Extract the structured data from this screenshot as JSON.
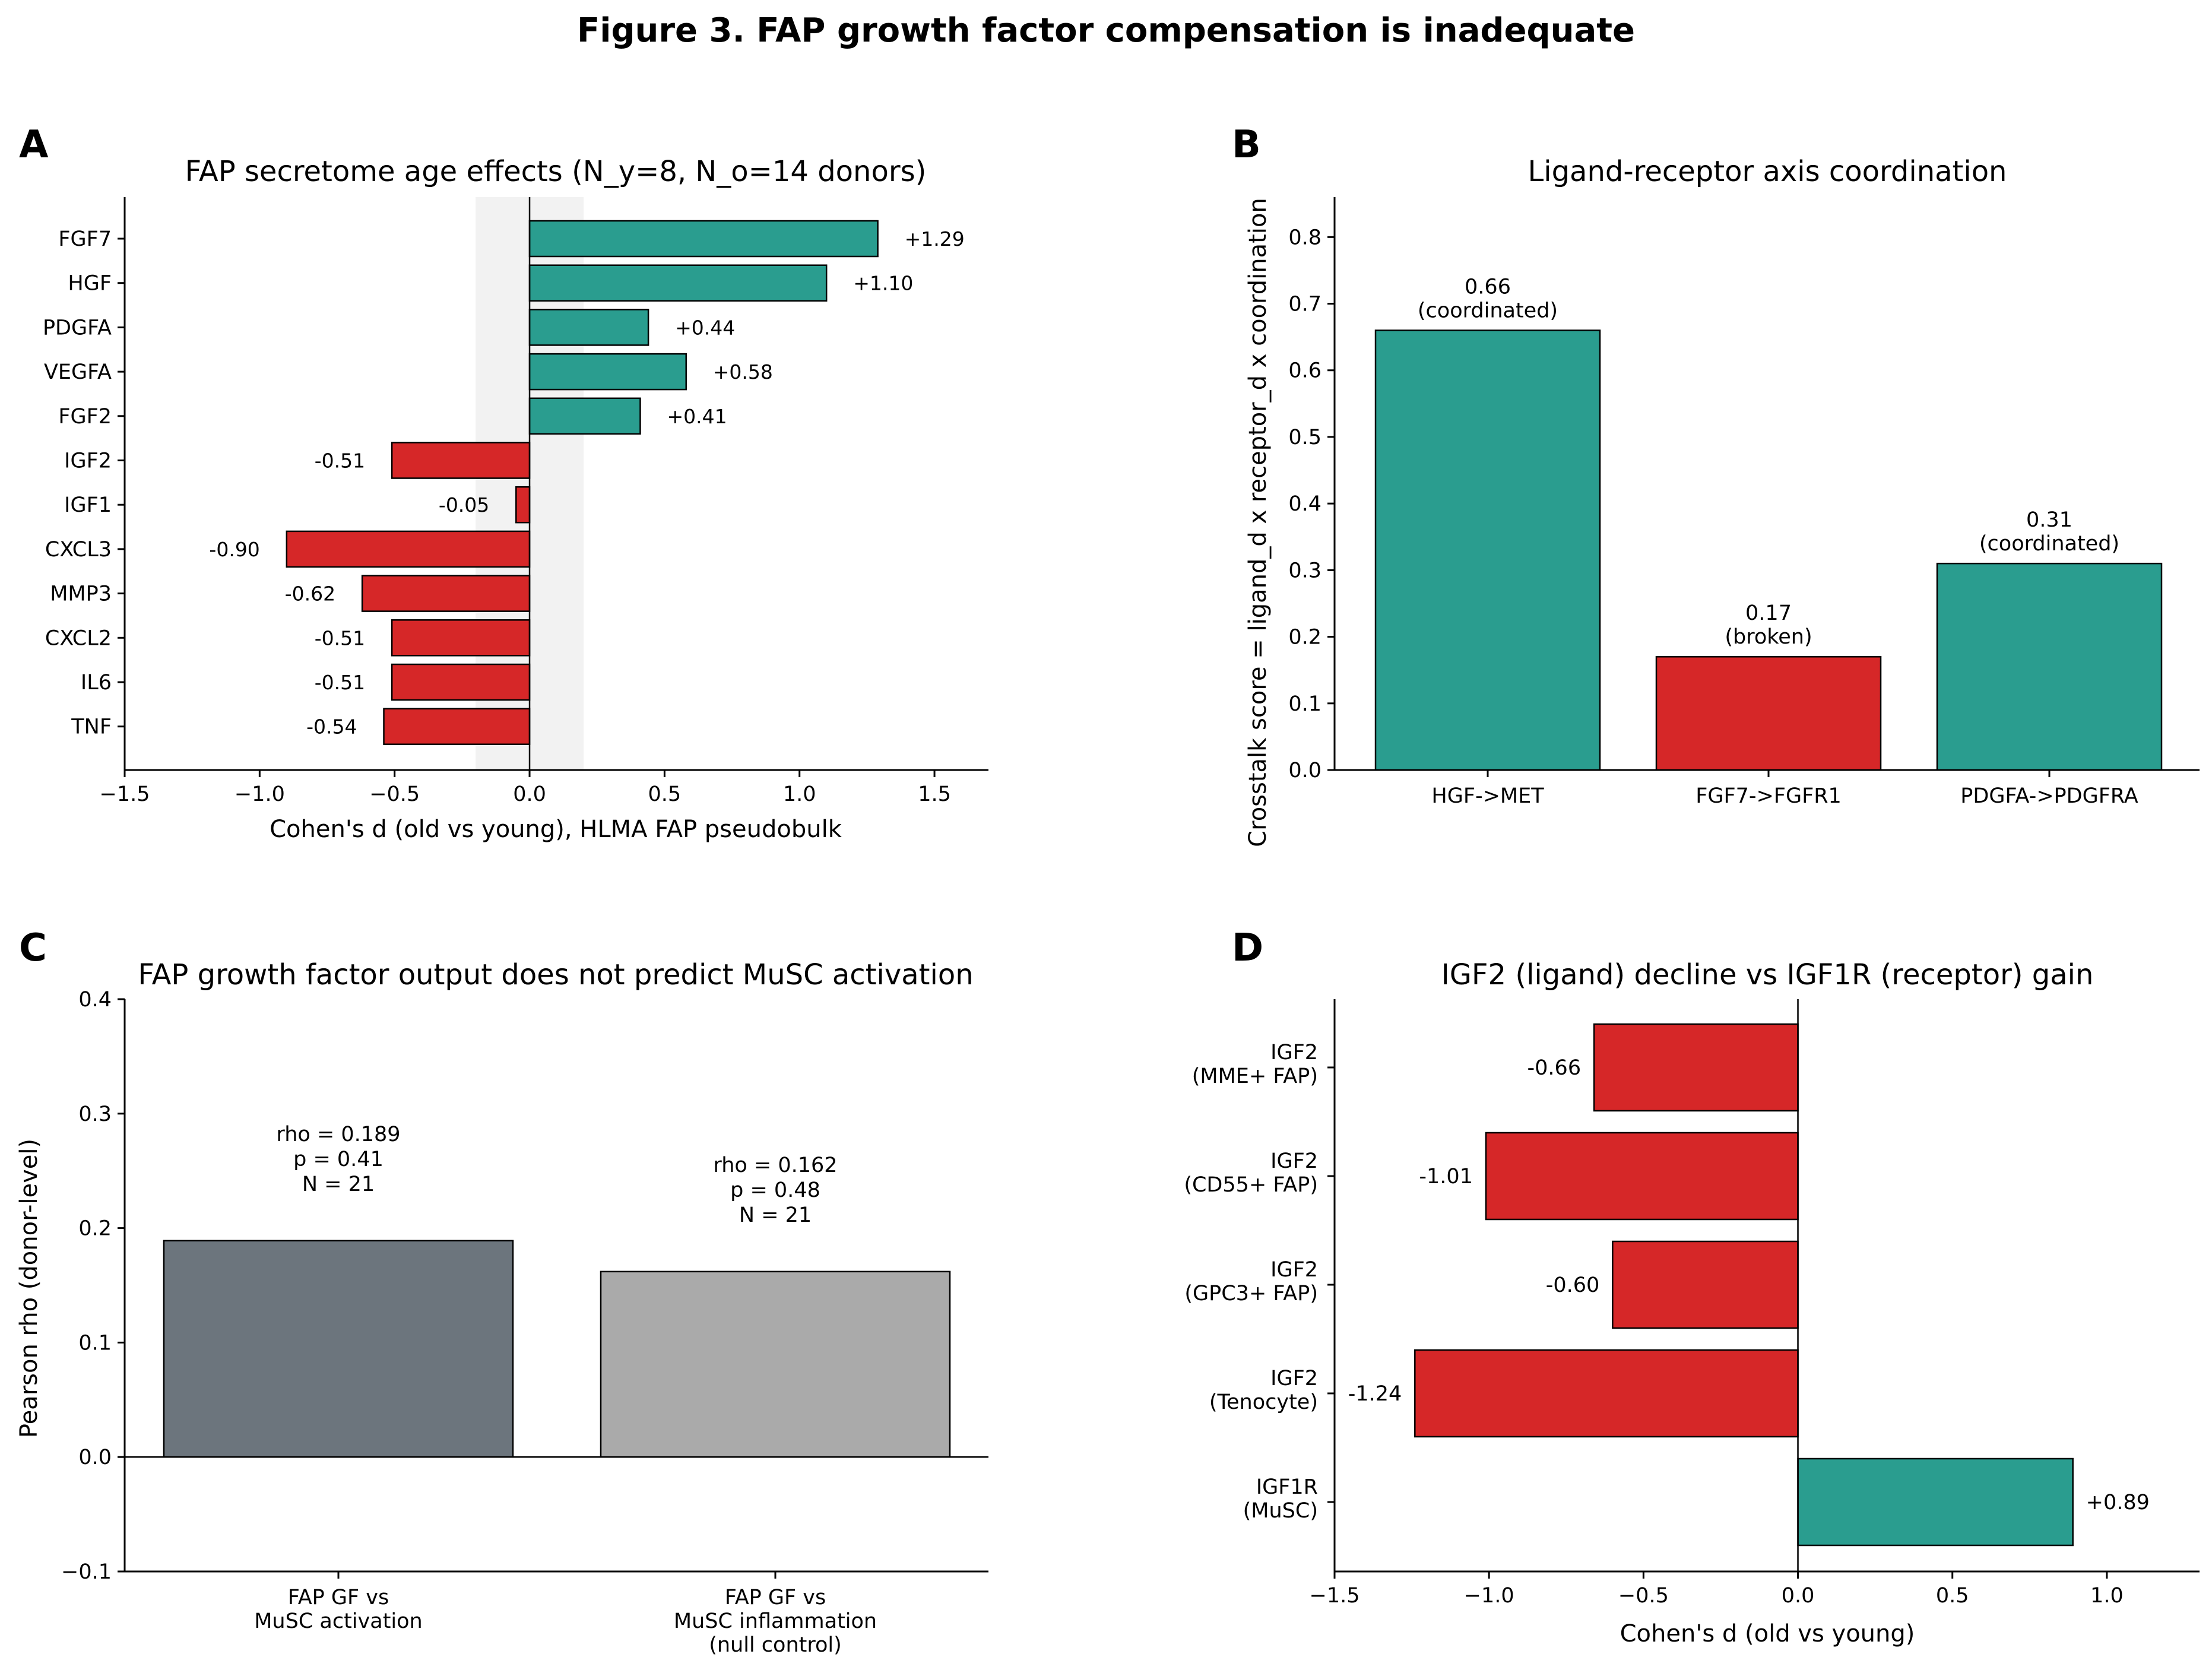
{
  "figure": {
    "title": "Figure 3. FAP growth factor compensation is inadequate"
  },
  "colors": {
    "positive": "#2a9d8f",
    "negative": "#d62728",
    "shade": "#f2f2f2",
    "gray_dark": "#6c757d",
    "gray_light": "#aaaaaa"
  },
  "chart_data": [
    {
      "panel": "A",
      "type": "bar",
      "orientation": "horizontal",
      "title": "FAP secretome age effects (N_y=8, N_o=14 donors)",
      "xlabel": "Cohen's d (old vs young), HLMA FAP pseudobulk",
      "ylabel": "",
      "xlim": [
        -1.5,
        1.7
      ],
      "xticks": [
        -1.5,
        -1.0,
        -0.5,
        0.0,
        0.5,
        1.0,
        1.5
      ],
      "xtick_labels": [
        "−1.5",
        "−1.0",
        "−0.5",
        "0.0",
        "0.5",
        "1.0",
        "1.5"
      ],
      "shaded_band": [
        -0.2,
        0.2
      ],
      "categories": [
        "FGF7",
        "HGF",
        "PDGFA",
        "VEGFA",
        "FGF2",
        "IGF2",
        "IGF1",
        "CXCL3",
        "MMP3",
        "CXCL2",
        "IL6",
        "TNF"
      ],
      "values": [
        1.29,
        1.1,
        0.44,
        0.58,
        0.41,
        -0.51,
        -0.05,
        -0.9,
        -0.62,
        -0.51,
        -0.51,
        -0.54
      ],
      "data_labels": [
        "+1.29",
        "+1.10",
        "+0.44",
        "+0.58",
        "+0.41",
        "-0.51",
        "-0.05",
        "-0.90",
        "-0.62",
        "-0.51",
        "-0.51",
        "-0.54"
      ]
    },
    {
      "panel": "B",
      "type": "bar",
      "orientation": "vertical",
      "title": "Ligand-receptor axis coordination",
      "xlabel": "",
      "ylabel": "Crosstalk score = ligand_d x receptor_d x coordination",
      "ylim": [
        0,
        0.86
      ],
      "yticks": [
        0.0,
        0.1,
        0.2,
        0.3,
        0.4,
        0.5,
        0.6,
        0.7,
        0.8
      ],
      "ytick_labels": [
        "0.0",
        "0.1",
        "0.2",
        "0.3",
        "0.4",
        "0.5",
        "0.6",
        "0.7",
        "0.8"
      ],
      "categories": [
        "HGF->MET",
        "FGF7->FGFR1",
        "PDGFA->PDGFRA"
      ],
      "values": [
        0.66,
        0.17,
        0.31
      ],
      "bar_colors": [
        "#2a9d8f",
        "#d62728",
        "#2a9d8f"
      ],
      "data_labels": [
        [
          "0.66",
          "(coordinated)"
        ],
        [
          "0.17",
          "(broken)"
        ],
        [
          "0.31",
          "(coordinated)"
        ]
      ]
    },
    {
      "panel": "C",
      "type": "bar",
      "orientation": "vertical",
      "title": "FAP growth factor output does not predict MuSC activation",
      "xlabel": "",
      "ylabel": "Pearson rho (donor-level)",
      "ylim": [
        -0.1,
        0.4
      ],
      "yticks": [
        -0.1,
        0.0,
        0.1,
        0.2,
        0.3,
        0.4
      ],
      "ytick_labels": [
        "−0.1",
        "0.0",
        "0.1",
        "0.2",
        "0.3",
        "0.4"
      ],
      "categories": [
        [
          "FAP GF vs",
          "MuSC activation"
        ],
        [
          "FAP GF vs",
          "MuSC inflammation",
          "(null control)"
        ]
      ],
      "values": [
        0.189,
        0.162
      ],
      "bar_colors": [
        "#6c757d",
        "#aaaaaa"
      ],
      "annotations": [
        [
          "rho = 0.189",
          "p = 0.41",
          "N = 21"
        ],
        [
          "rho = 0.162",
          "p = 0.48",
          "N = 21"
        ]
      ]
    },
    {
      "panel": "D",
      "type": "bar",
      "orientation": "horizontal",
      "title": "IGF2 (ligand) decline vs IGF1R (receptor) gain",
      "xlabel": "Cohen's d (old vs young)",
      "ylabel": "",
      "xlim": [
        -1.5,
        1.3
      ],
      "xticks": [
        -1.5,
        -1.0,
        -0.5,
        0.0,
        0.5,
        1.0
      ],
      "xtick_labels": [
        "−1.5",
        "−1.0",
        "−0.5",
        "0.0",
        "0.5",
        "1.0"
      ],
      "categories": [
        [
          "IGF2",
          "(MME+ FAP)"
        ],
        [
          "IGF2",
          "(CD55+ FAP)"
        ],
        [
          "IGF2",
          "(GPC3+ FAP)"
        ],
        [
          "IGF2",
          "(Tenocyte)"
        ],
        [
          "IGF1R",
          "(MuSC)"
        ]
      ],
      "values": [
        -0.66,
        -1.01,
        -0.6,
        -1.24,
        0.89
      ],
      "data_labels": [
        "-0.66",
        "-1.01",
        "-0.60",
        "-1.24",
        "+0.89"
      ]
    }
  ]
}
